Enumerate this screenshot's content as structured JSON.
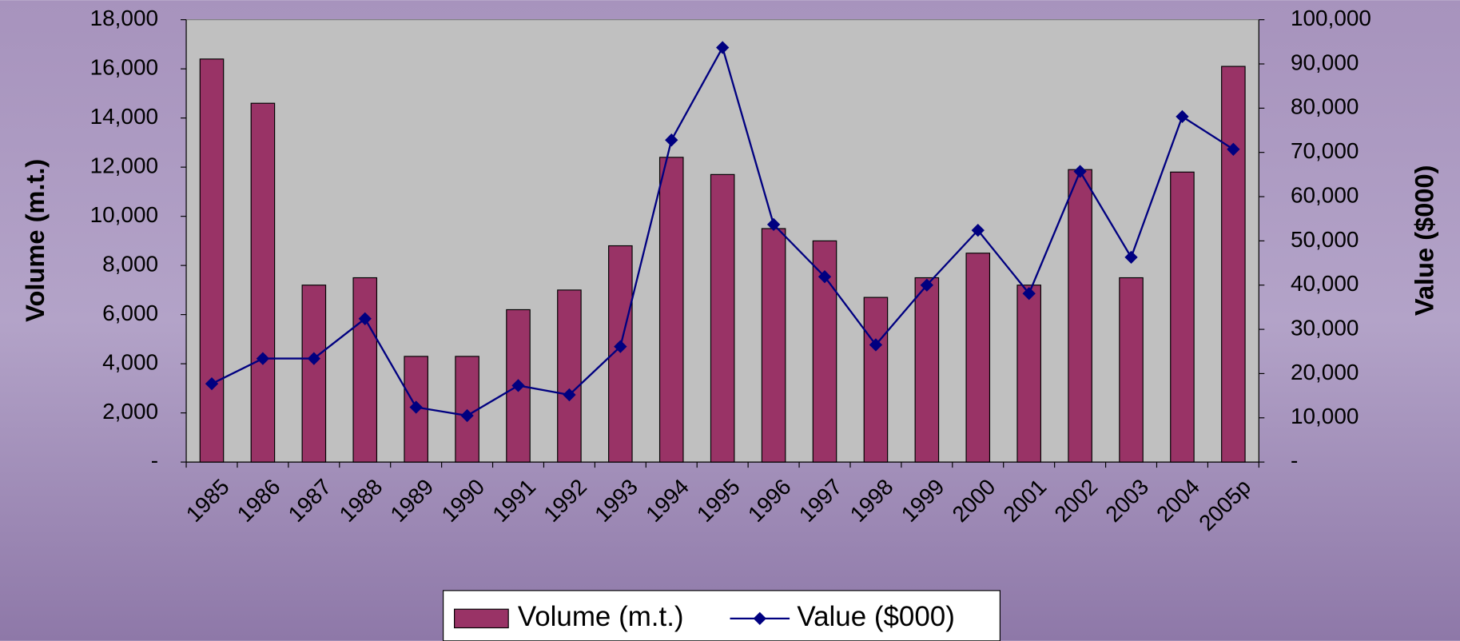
{
  "chart_data": {
    "type": "bar_line",
    "categories": [
      "1985",
      "1986",
      "1987",
      "1988",
      "1989",
      "1990",
      "1991",
      "1992",
      "1993",
      "1994",
      "1995",
      "1996",
      "1997",
      "1998",
      "1999",
      "2000",
      "2001",
      "2002",
      "2003",
      "2004",
      "2005p"
    ],
    "series": [
      {
        "name": "Volume (m.t.)",
        "type": "bar",
        "color": "#993366",
        "values": [
          16400,
          14600,
          7200,
          7500,
          4300,
          4300,
          6200,
          7000,
          8800,
          12400,
          11700,
          9500,
          9000,
          6700,
          7500,
          8500,
          7200,
          11900,
          7500,
          11800,
          16100
        ]
      },
      {
        "name": "Value ($000)",
        "type": "line",
        "axis": "y2",
        "color": "#000080",
        "values": [
          17700,
          23400,
          23400,
          32400,
          12400,
          10500,
          17300,
          15200,
          26100,
          72800,
          93700,
          53700,
          41900,
          26500,
          40000,
          52400,
          38100,
          65700,
          46300,
          78100,
          70700
        ]
      }
    ],
    "ylabel": "Volume (m.t.)",
    "y2label": "Value ($000)",
    "ylim": [
      0,
      18000
    ],
    "yticks": [
      {
        "value": 0,
        "label": "-"
      },
      {
        "value": 2000,
        "label": "2,000"
      },
      {
        "value": 4000,
        "label": "4,000"
      },
      {
        "value": 6000,
        "label": "6,000"
      },
      {
        "value": 8000,
        "label": "8,000"
      },
      {
        "value": 10000,
        "label": "10,000"
      },
      {
        "value": 12000,
        "label": "12,000"
      },
      {
        "value": 14000,
        "label": "14,000"
      },
      {
        "value": 16000,
        "label": "16,000"
      },
      {
        "value": 18000,
        "label": "18,000"
      }
    ],
    "y2lim": [
      0,
      100000
    ],
    "y2ticks": [
      {
        "value": 0,
        "label": "-"
      },
      {
        "value": 10000,
        "label": "10,000"
      },
      {
        "value": 20000,
        "label": "20,000"
      },
      {
        "value": 30000,
        "label": "30,000"
      },
      {
        "value": 40000,
        "label": "40,000"
      },
      {
        "value": 50000,
        "label": "50,000"
      },
      {
        "value": 60000,
        "label": "60,000"
      },
      {
        "value": 70000,
        "label": "70,000"
      },
      {
        "value": 80000,
        "label": "80,000"
      },
      {
        "value": 90000,
        "label": "90,000"
      },
      {
        "value": 100000,
        "label": "100,000"
      }
    ],
    "legend": "bottom"
  }
}
